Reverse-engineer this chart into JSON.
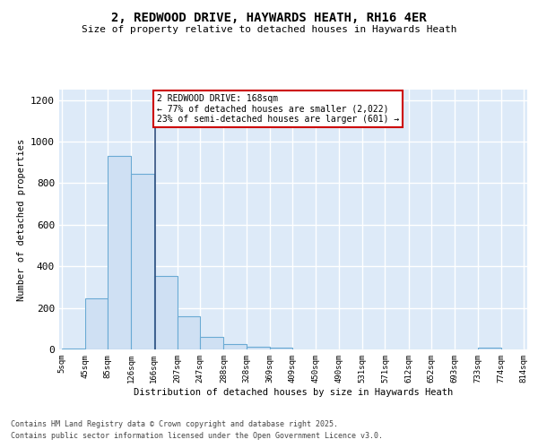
{
  "title1": "2, REDWOOD DRIVE, HAYWARDS HEATH, RH16 4ER",
  "title2": "Size of property relative to detached houses in Haywards Heath",
  "xlabel": "Distribution of detached houses by size in Haywards Heath",
  "ylabel": "Number of detached properties",
  "bar_left_edges": [
    5,
    45,
    85,
    126,
    166,
    207,
    247,
    288,
    328,
    369,
    409,
    450,
    490,
    531,
    571,
    612,
    652,
    693,
    733,
    774
  ],
  "bar_widths": [
    40,
    40,
    41,
    40,
    41,
    40,
    41,
    40,
    41,
    40,
    41,
    40,
    41,
    40,
    41,
    40,
    41,
    40,
    41,
    40
  ],
  "bar_heights": [
    5,
    245,
    930,
    845,
    355,
    160,
    60,
    28,
    12,
    8,
    2,
    0,
    0,
    0,
    0,
    0,
    0,
    0,
    10,
    0
  ],
  "bar_color": "#cfe0f3",
  "bar_edgecolor": "#6aaad4",
  "property_line_x": 168,
  "property_line_color": "#2f4f7f",
  "annotation_text": "2 REDWOOD DRIVE: 168sqm\n← 77% of detached houses are smaller (2,022)\n23% of semi-detached houses are larger (601) →",
  "annotation_box_color": "#ffffff",
  "annotation_border_color": "#cc0000",
  "xtick_labels": [
    "5sqm",
    "45sqm",
    "85sqm",
    "126sqm",
    "166sqm",
    "207sqm",
    "247sqm",
    "288sqm",
    "328sqm",
    "369sqm",
    "409sqm",
    "450sqm",
    "490sqm",
    "531sqm",
    "571sqm",
    "612sqm",
    "652sqm",
    "693sqm",
    "733sqm",
    "774sqm",
    "814sqm"
  ],
  "xtick_positions": [
    5,
    45,
    85,
    126,
    166,
    207,
    247,
    288,
    328,
    369,
    409,
    450,
    490,
    531,
    571,
    612,
    652,
    693,
    733,
    774,
    814
  ],
  "ylim": [
    0,
    1250
  ],
  "xlim": [
    0,
    820
  ],
  "ytick_values": [
    0,
    200,
    400,
    600,
    800,
    1000,
    1200
  ],
  "bg_color": "#ddeaf8",
  "grid_color": "#ffffff",
  "fig_bg_color": "#ffffff",
  "footnote1": "Contains HM Land Registry data © Crown copyright and database right 2025.",
  "footnote2": "Contains public sector information licensed under the Open Government Licence v3.0."
}
